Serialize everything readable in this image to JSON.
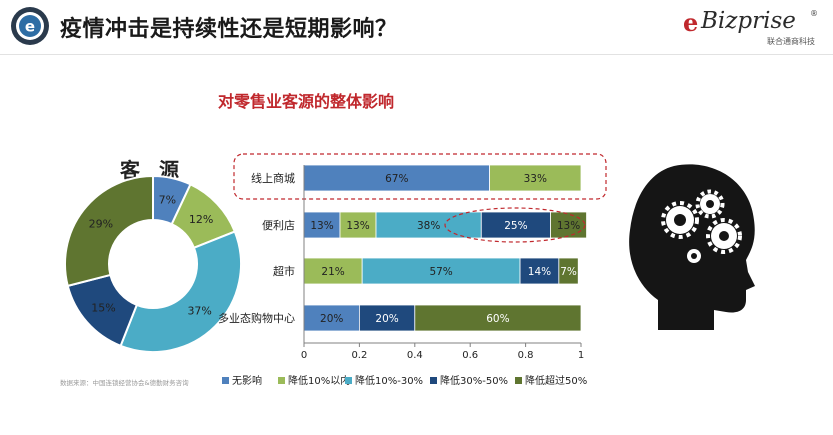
{
  "header": {
    "title": "疫情冲击是持续性还是短期影响？",
    "brand_name": "Bizprise",
    "brand_e": "e",
    "brand_reg": "®",
    "brand_sub": "联合通商科技"
  },
  "subtitle": "对零售业客源的整体影响",
  "source_note": "数据来源：中国连锁经营协会&德勤财务咨询",
  "colors": {
    "none": "#4f81bd",
    "lt10": "#9bbb59",
    "r10_30": "#4bacc6",
    "r30_50": "#1f497d",
    "gt50": "#5f7530",
    "highlight": "#c0282d"
  },
  "chart_data": [
    {
      "type": "pie",
      "title": "客 源",
      "values": [
        7,
        12,
        37,
        15,
        29
      ],
      "labels": [
        "7%",
        "12%",
        "37%",
        "15%",
        "29%"
      ],
      "colors": [
        "#4f81bd",
        "#9bbb59",
        "#4bacc6",
        "#1f497d",
        "#5f7530"
      ]
    },
    {
      "type": "bar",
      "orientation": "horizontal",
      "stacked": true,
      "categories": [
        "线上商城",
        "便利店",
        "超市",
        "多业态购物中心"
      ],
      "series": [
        {
          "name": "无影响",
          "values": [
            0.67,
            0.13,
            0,
            0.2
          ],
          "labels": [
            "67%",
            "13%",
            "",
            "20%"
          ]
        },
        {
          "name": "降低10%以内",
          "values": [
            0.33,
            0.13,
            0.21,
            0
          ],
          "labels": [
            "33%",
            "13%",
            "21%",
            ""
          ]
        },
        {
          "name": "降低10%-30%",
          "values": [
            0,
            0.38,
            0.57,
            0
          ],
          "labels": [
            "",
            "38%",
            "57%",
            ""
          ]
        },
        {
          "name": "降低30%-50%",
          "values": [
            0,
            0.25,
            0.14,
            0.2
          ],
          "labels": [
            "",
            "25%",
            "14%",
            "20%"
          ]
        },
        {
          "name": "降低超过50%",
          "values": [
            0,
            0.13,
            0.07,
            0.6
          ],
          "labels": [
            "",
            "13%",
            "7%",
            "60%"
          ]
        }
      ],
      "xlim": [
        0,
        1
      ],
      "xticks": [
        "0",
        "0.2",
        "0.4",
        "0.6",
        "0.8",
        "1"
      ],
      "legend_position": "bottom",
      "grid": false
    }
  ]
}
